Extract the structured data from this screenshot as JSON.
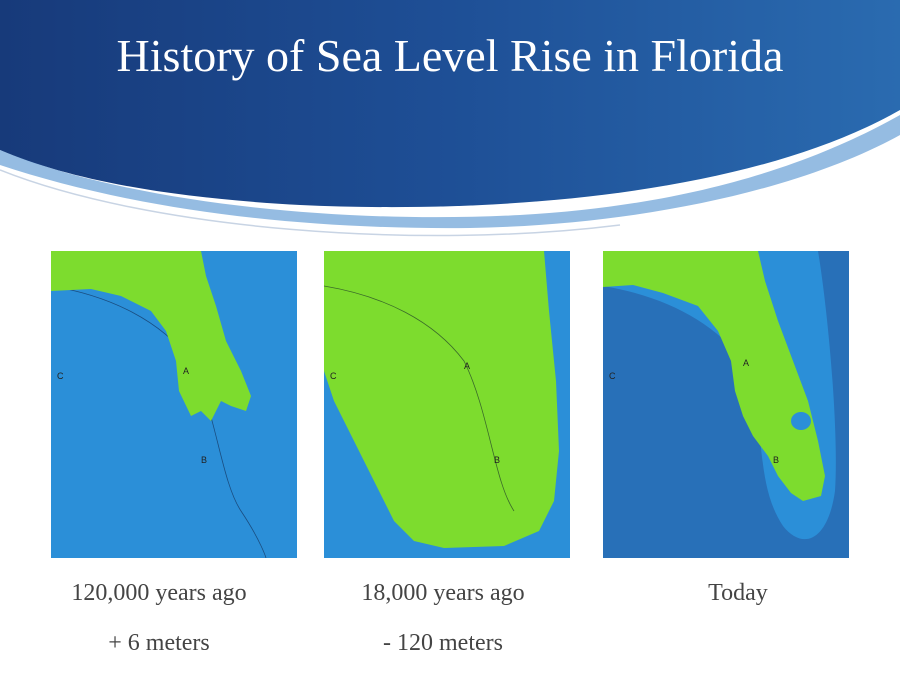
{
  "header": {
    "title": "History of Sea Level Rise in Florida"
  },
  "panels": [
    {
      "caption": "120,000 years ago",
      "detail": "+ 6 meters",
      "labels": [
        "A",
        "B",
        "C"
      ]
    },
    {
      "caption": "18,000 years ago",
      "detail": "- 120 meters",
      "labels": [
        "A",
        "B",
        "C"
      ]
    },
    {
      "caption": "Today",
      "labels": [
        "A",
        "B",
        "C"
      ]
    }
  ]
}
